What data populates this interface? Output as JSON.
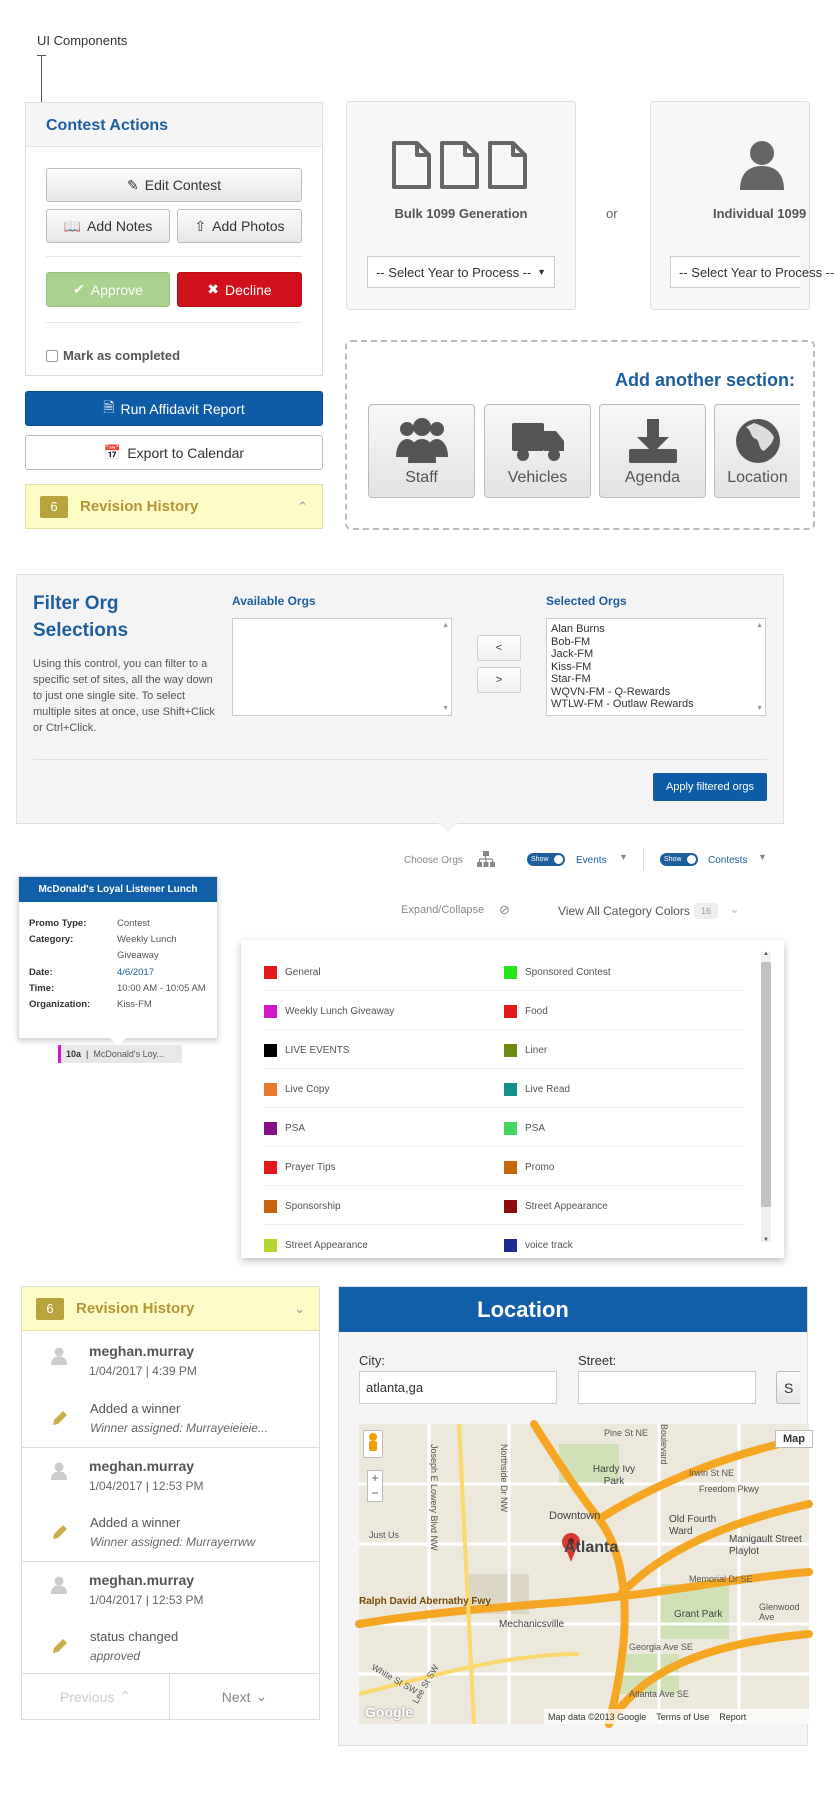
{
  "page": {
    "title": "UI Components"
  },
  "contest_actions": {
    "title": "Contest Actions",
    "edit_label": "Edit Contest",
    "notes_label": "Add Notes",
    "photos_label": "Add Photos",
    "approve_label": "Approve",
    "decline_label": "Decline",
    "completed_label": "Mark as completed"
  },
  "actions": {
    "run_label": "Run Affidavit Report",
    "export_label": "Export to Calendar"
  },
  "revision_mini": {
    "count": "6",
    "title": "Revision History"
  },
  "tax": {
    "bulk_title": "Bulk 1099 Generation",
    "bulk_select": "-- Select Year to Process --",
    "or": "or",
    "individual_title": "Individual 1099",
    "individual_select": "-- Select Year to Process --"
  },
  "add_section": {
    "title": "Add another section:",
    "tiles": [
      {
        "label": "Staff",
        "icon": "staff-icon"
      },
      {
        "label": "Vehicles",
        "icon": "truck-icon"
      },
      {
        "label": "Agenda",
        "icon": "download-icon"
      },
      {
        "label": "Location",
        "icon": "globe-icon"
      }
    ]
  },
  "filter": {
    "title": "Filter Org Selections",
    "description": "Using this control, you can filter to a specific set of sites, all the way down to just one single site. To select multiple sites at once, use Shift+Click or Ctrl+Click.",
    "available_label": "Available Orgs",
    "selected_label": "Selected Orgs",
    "selected": [
      "Alan Burns",
      "Bob-FM",
      "Jack-FM",
      "Kiss-FM",
      "Star-FM",
      "WQVN-FM - Q-Rewards",
      "WTLW-FM - Outlaw Rewards"
    ],
    "move_left": "<",
    "move_right": ">",
    "apply_label": "Apply filtered orgs"
  },
  "calendar_toolbar": {
    "choose_orgs": "Choose Orgs",
    "toggle": "Show",
    "events": "Events",
    "contests": "Contests",
    "expand": "Expand/Collapse",
    "view_colors": "View All Category Colors",
    "color_count": "16"
  },
  "event": {
    "title": "McDonald's Loyal Listener Lunch",
    "rows": [
      {
        "k": "Promo Type:",
        "v": "Contest"
      },
      {
        "k": "Category:",
        "v": "Weekly Lunch Giveaway"
      },
      {
        "k": "Date:",
        "v": "4/6/2017"
      },
      {
        "k": "Time:",
        "v": "10:00 AM - 10:05 AM"
      },
      {
        "k": "Organization:",
        "v": "Kiss-FM"
      }
    ],
    "chip_time": "10a",
    "chip_title": "McDonald's Loy..."
  },
  "categories": [
    {
      "name": "General",
      "color": "#e3171c"
    },
    {
      "name": "Sponsored Contest",
      "color": "#25e61d"
    },
    {
      "name": "Weekly Lunch Giveaway",
      "color": "#d119c7"
    },
    {
      "name": "Food",
      "color": "#e3171c"
    },
    {
      "name": "LIVE EVENTS",
      "color": "#000000"
    },
    {
      "name": "Liner",
      "color": "#6e8a13"
    },
    {
      "name": "Live Copy",
      "color": "#e8782c"
    },
    {
      "name": "Live Read",
      "color": "#138f8c"
    },
    {
      "name": "PSA",
      "color": "#8a0e8a"
    },
    {
      "name": "PSA",
      "color": "#45d660"
    },
    {
      "name": "Prayer Tips",
      "color": "#e3171c"
    },
    {
      "name": "Promo",
      "color": "#c9640e"
    },
    {
      "name": "Sponsorship",
      "color": "#c9640e"
    },
    {
      "name": "Street Appearance",
      "color": "#8f0a0a"
    },
    {
      "name": "Street Appearance",
      "color": "#b5d631"
    },
    {
      "name": "voice track",
      "color": "#1d2a8f"
    }
  ],
  "revision": {
    "count": "6",
    "title": "Revision History",
    "entries": [
      {
        "user": "meghan.murray",
        "time": "1/04/2017 | 4:39 PM",
        "action": "Added a winner",
        "detail": "Winner assigned: Murrayeieieie..."
      },
      {
        "user": "meghan.murray",
        "time": "1/04/2017 | 12:53 PM",
        "action": "Added a winner",
        "detail": "Winner assigned: Murrayerrww"
      },
      {
        "user": "meghan.murray",
        "time": "1/04/2017 | 12:53 PM",
        "action": "status changed",
        "detail": "approved"
      }
    ],
    "prev_label": "Previous",
    "next_label": "Next"
  },
  "location": {
    "title": "Location",
    "city_label": "City:",
    "city_value": "atlanta,ga",
    "street_label": "Street:",
    "street_value": "",
    "search_label": "S",
    "map_type": "Map",
    "map_labels": {
      "city": "Atlanta",
      "downtown": "Downtown",
      "ivy_park": "Hardy Ivy Park",
      "old_fourth": "Old Fourth Ward",
      "grant_park": "Grant Park",
      "mechanicsville": "Mechanicsville",
      "manigault": "Manigault Street Playlot",
      "freedom": "Freedom Pkwy",
      "memorial": "Memorial Dr SE",
      "abernathy": "Ralph David Abernathy Fwy",
      "georgia": "Georgia Ave SE",
      "atlanta_ave": "Atlanta Ave SE",
      "pine": "Pine St NE",
      "northside": "Northside Dr NW",
      "lowery": "Joseph E Lowery Blvd NW",
      "irwin": "Irwin St NE",
      "glenwood": "Glenwood Ave",
      "white": "White St SW",
      "lee": "Lee St SW",
      "boulevard": "Boulevard",
      "just_us": "Just Us",
      "data": "Map data ©2013 Google",
      "terms": "Terms of Use",
      "report": "Report",
      "google": "Google"
    }
  }
}
